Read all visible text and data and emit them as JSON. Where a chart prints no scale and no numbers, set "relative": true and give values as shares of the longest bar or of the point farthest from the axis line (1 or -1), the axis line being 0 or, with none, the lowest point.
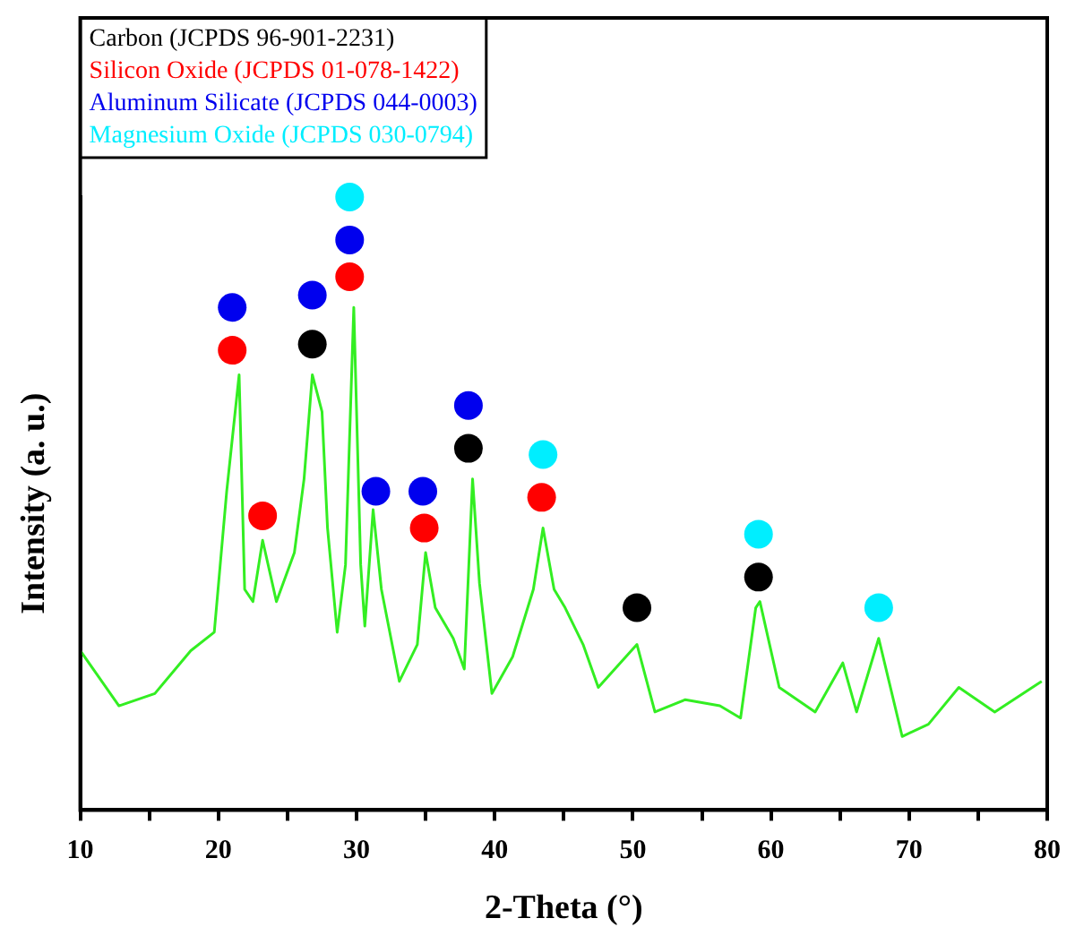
{
  "chart_data": {
    "type": "line",
    "relative": true,
    "xlabel": "2-Theta (°)",
    "ylabel": "Intensity (a. u.)",
    "legend": "top left",
    "xlim": [
      10,
      80
    ],
    "xticks": [
      10,
      {
        "value": 15,
        "label": null
      },
      20,
      {
        "value": 25,
        "label": null
      },
      30,
      {
        "value": 35,
        "label": null
      },
      40,
      {
        "value": 45,
        "label": null
      },
      50,
      {
        "value": 55,
        "label": null
      },
      60,
      {
        "value": 65,
        "label": null
      },
      70,
      {
        "value": 75,
        "label": null
      },
      80
    ],
    "series": [
      {
        "type": "line",
        "color": "#33ee22",
        "x": [
          10.0,
          12.8,
          15.4,
          18.0,
          19.7,
          20.6,
          21.5,
          21.9,
          22.5,
          23.2,
          24.2,
          25.5,
          26.2,
          26.8,
          27.5,
          27.9,
          28.6,
          29.2,
          29.8,
          30.3,
          30.6,
          31.2,
          31.8,
          33.1,
          34.4,
          35.0,
          35.7,
          37.0,
          37.8,
          38.4,
          38.9,
          39.8,
          41.3,
          42.8,
          43.5,
          44.3,
          45.1,
          46.4,
          47.5,
          50.3,
          51.6,
          53.8,
          56.3,
          57.8,
          58.9,
          59.2,
          60.6,
          63.2,
          65.2,
          66.2,
          67.8,
          69.5,
          71.4,
          73.6,
          76.2,
          79.6
        ],
        "values": [
          0.26,
          0.17,
          0.19,
          0.26,
          0.29,
          0.52,
          0.71,
          0.36,
          0.34,
          0.44,
          0.34,
          0.42,
          0.54,
          0.71,
          0.65,
          0.46,
          0.29,
          0.4,
          0.82,
          0.4,
          0.3,
          0.49,
          0.36,
          0.21,
          0.27,
          0.42,
          0.33,
          0.28,
          0.23,
          0.54,
          0.37,
          0.19,
          0.25,
          0.36,
          0.46,
          0.36,
          0.33,
          0.27,
          0.2,
          0.27,
          0.16,
          0.18,
          0.17,
          0.15,
          0.33,
          0.34,
          0.2,
          0.16,
          0.24,
          0.16,
          0.28,
          0.12,
          0.14,
          0.2,
          0.16,
          0.21
        ]
      },
      {
        "type": "scatter",
        "name": "Carbon (JCPDS 96-901-2231)",
        "color": "#000000",
        "x": [
          26.8,
          38.1,
          50.3,
          59.1
        ],
        "values": [
          0.76,
          0.59,
          0.33,
          0.38
        ]
      },
      {
        "type": "scatter",
        "name": "Silicon Oxide (JCPDS 01-078-1422)",
        "color": "#ff0000",
        "x": [
          21.0,
          23.2,
          29.5,
          34.9,
          43.4
        ],
        "values": [
          0.75,
          0.48,
          0.87,
          0.46,
          0.51
        ]
      },
      {
        "type": "scatter",
        "name": "Aluminum Silicate (JCPDS 044-0003)",
        "color": "#0000ee",
        "x": [
          21.0,
          26.8,
          29.5,
          31.4,
          34.8,
          38.1
        ],
        "values": [
          0.82,
          0.84,
          0.93,
          0.52,
          0.52,
          0.66
        ]
      },
      {
        "type": "scatter",
        "name": "Magnesium Oxide (JCPDS 030-0794)",
        "color": "#00eeff",
        "x": [
          29.5,
          43.5,
          59.1,
          67.8
        ],
        "values": [
          1.0,
          0.58,
          0.45,
          0.33
        ]
      }
    ]
  }
}
